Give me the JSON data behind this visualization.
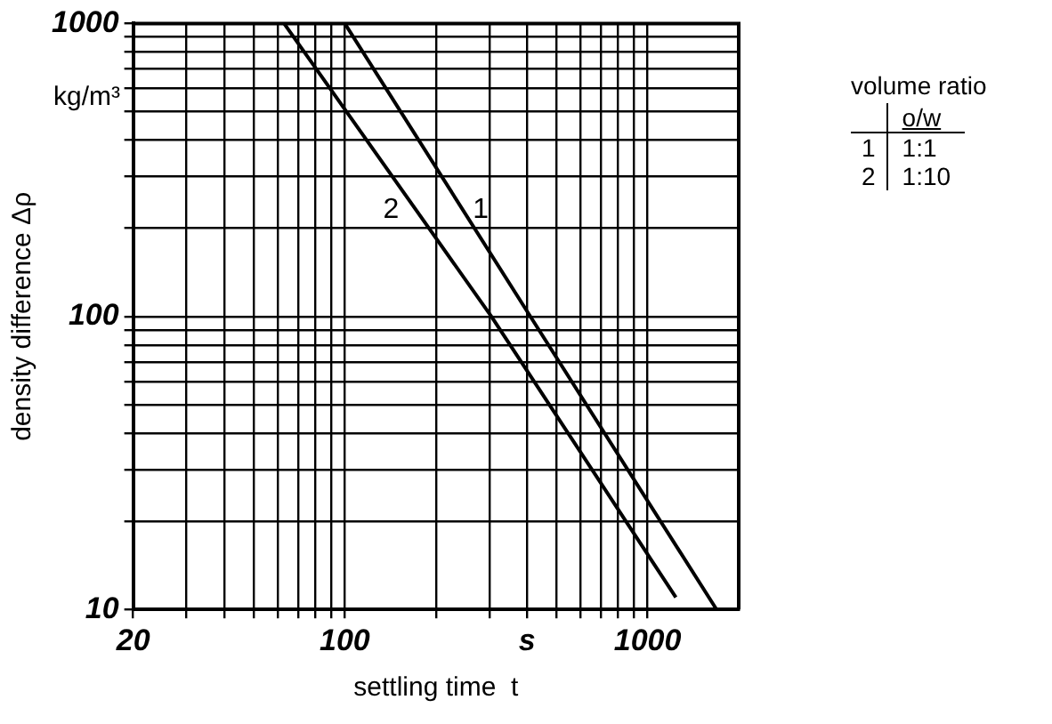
{
  "chart_data": {
    "type": "line",
    "xlabel": "settling time  t",
    "ylabel": "density difference Δρ",
    "log": "xy",
    "grid": true,
    "legend": "right",
    "legend_title": "volume ratio",
    "marker": "none",
    "line_style": "solid",
    "xlim": [
      20,
      2000
    ],
    "ylim": [
      10,
      1000
    ],
    "xticks": [
      20,
      {
        "value": 30,
        "label": null
      },
      {
        "value": 40,
        "label": null
      },
      {
        "value": 50,
        "label": null
      },
      {
        "value": 60,
        "label": null
      },
      {
        "value": 70,
        "label": null
      },
      {
        "value": 80,
        "label": null
      },
      {
        "value": 90,
        "label": null
      },
      100,
      {
        "value": 200,
        "label": null
      },
      {
        "value": 300,
        "label": null
      },
      {
        "value": 400,
        "label": "s"
      },
      {
        "value": 500,
        "label": null
      },
      {
        "value": 600,
        "label": null
      },
      {
        "value": 700,
        "label": null
      },
      {
        "value": 800,
        "label": null
      },
      {
        "value": 900,
        "label": null
      },
      1000
    ],
    "yticks": [
      10,
      {
        "value": 20,
        "label": null
      },
      {
        "value": 30,
        "label": null
      },
      {
        "value": 40,
        "label": null
      },
      {
        "value": 50,
        "label": null
      },
      {
        "value": 60,
        "label": null
      },
      {
        "value": 70,
        "label": null
      },
      {
        "value": 80,
        "label": null
      },
      {
        "value": 90,
        "label": null
      },
      100,
      {
        "value": 200,
        "label": null
      },
      {
        "value": 300,
        "label": null
      },
      {
        "value": 400,
        "label": null
      },
      {
        "value": 500,
        "label": null
      },
      {
        "value": 600,
        "label": null
      },
      {
        "value": 700,
        "label": null
      },
      {
        "value": 800,
        "label": null
      },
      {
        "value": 900,
        "label": null
      },
      1000
    ],
    "annotations": [
      "kg/m³",
      "o/w",
      "1:1",
      "1:10"
    ],
    "series": [
      {
        "name": "1",
        "color": "#000000",
        "x": [
          100,
          410,
          1690
        ],
        "values": [
          1000,
          100,
          10
        ]
      },
      {
        "name": "2",
        "color": "#000000",
        "x": [
          63,
          305,
          1240
        ],
        "values": [
          1000,
          100,
          11
        ]
      }
    ]
  }
}
